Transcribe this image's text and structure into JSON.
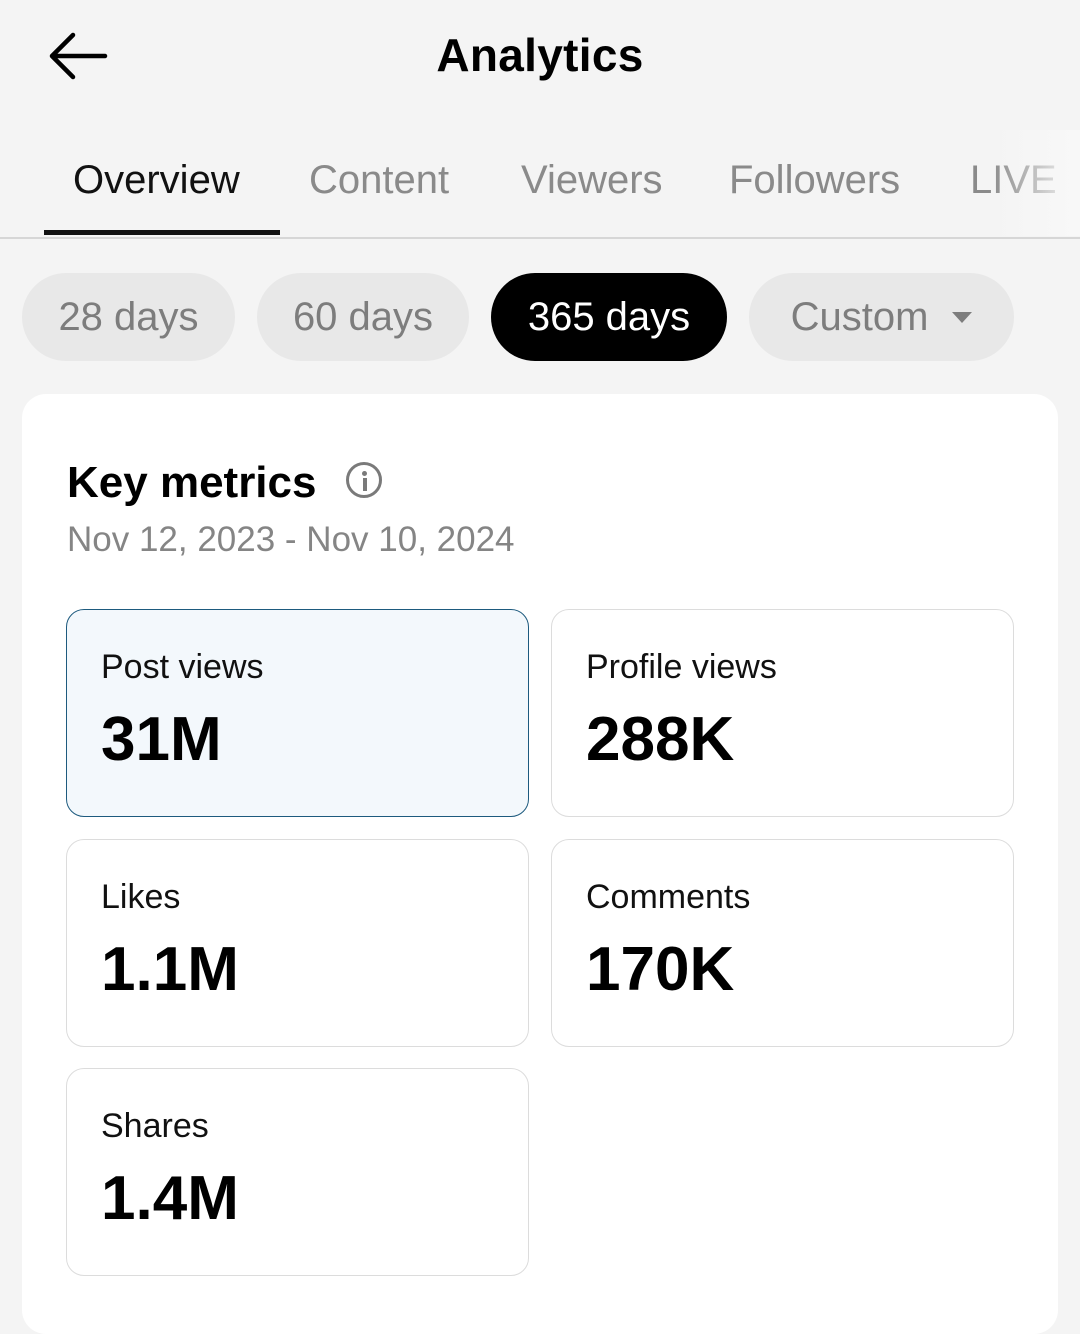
{
  "header": {
    "title": "Analytics",
    "back_icon": "arrow-left-icon"
  },
  "tabs": [
    {
      "label": "Overview",
      "active": true
    },
    {
      "label": "Content",
      "active": false
    },
    {
      "label": "Viewers",
      "active": false
    },
    {
      "label": "Followers",
      "active": false
    },
    {
      "label": "LIVE",
      "active": false
    }
  ],
  "ranges": [
    {
      "label": "28 days",
      "active": false
    },
    {
      "label": "60 days",
      "active": false
    },
    {
      "label": "365 days",
      "active": true
    },
    {
      "label": "Custom",
      "active": false,
      "has_dropdown": true
    }
  ],
  "key_metrics": {
    "title": "Key metrics",
    "info_icon": "info-icon",
    "date_range": "Nov 12, 2023 - Nov 10, 2024",
    "items": [
      {
        "label": "Post views",
        "value": "31M",
        "selected": true
      },
      {
        "label": "Profile views",
        "value": "288K",
        "selected": false
      },
      {
        "label": "Likes",
        "value": "1.1M",
        "selected": false
      },
      {
        "label": "Comments",
        "value": "170K",
        "selected": false
      },
      {
        "label": "Shares",
        "value": "1.4M",
        "selected": false
      }
    ]
  },
  "colors": {
    "background": "#f4f4f4",
    "active_chip": "#000000",
    "selected_card_bg": "#f3f8fc",
    "selected_card_border": "#1d5a7e"
  }
}
